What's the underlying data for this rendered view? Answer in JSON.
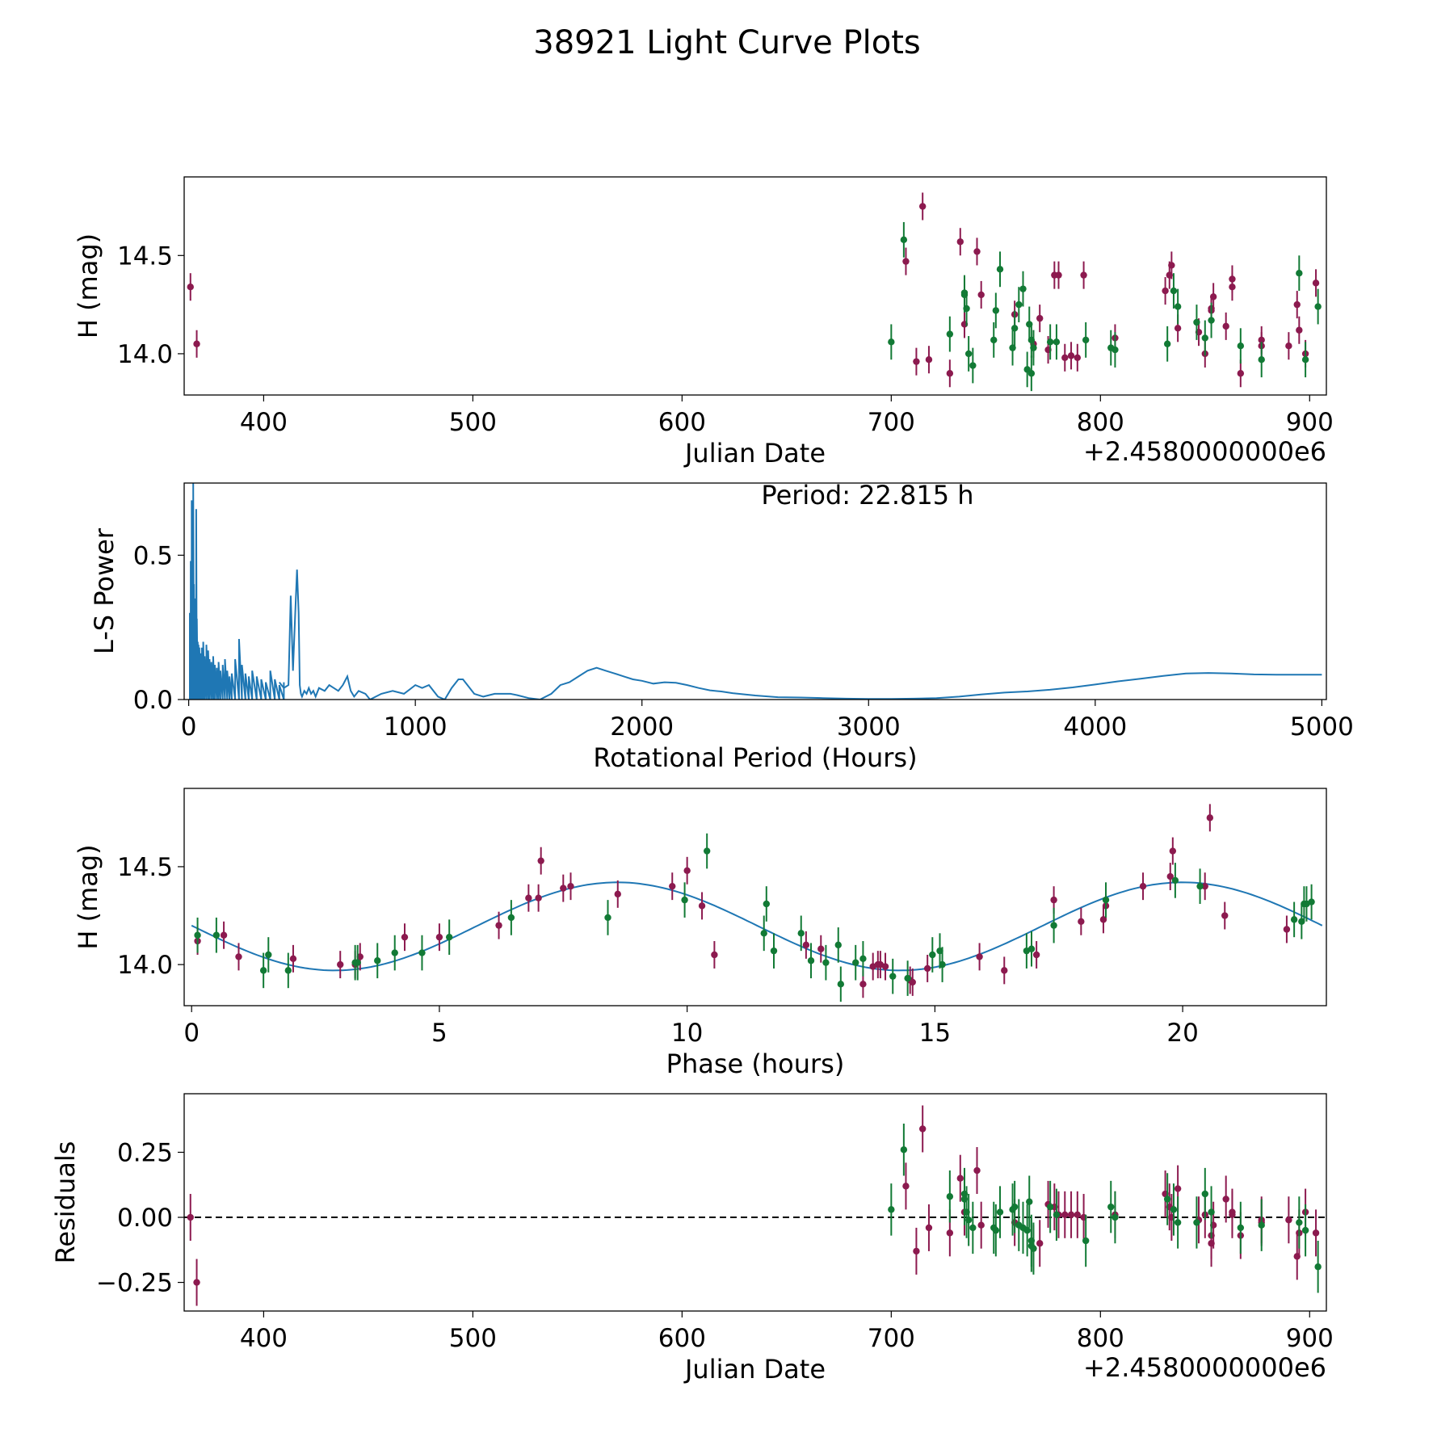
{
  "figure": {
    "title": "38921 Light Curve Plots"
  },
  "colors": {
    "red": "#8c1a4f",
    "green": "#127a35",
    "blue": "#1f77b4",
    "black": "#000000"
  },
  "chart_data": [
    {
      "name": "light-curve",
      "type": "scatter",
      "xlabel": "Julian Date",
      "ylabel": "H (mag)",
      "offset_text": "+2.4580000000e6",
      "xlim": [
        362.0,
        908.0
      ],
      "ylim": [
        13.79,
        14.9
      ],
      "xticks": [
        400,
        500,
        600,
        700,
        800,
        900
      ],
      "xtick_labels": [
        "400",
        "500",
        "600",
        "700",
        "800",
        "900"
      ],
      "yticks": [
        14.0,
        14.5
      ],
      "ytick_labels": [
        "14.0",
        "14.5"
      ],
      "series": [
        {
          "name": "red",
          "color": "red",
          "yerr": 0.07,
          "x": [
            365,
            368,
            707,
            712,
            715,
            718,
            728,
            733,
            735,
            741,
            743,
            759,
            768,
            771,
            775,
            778,
            780,
            783,
            786,
            789,
            792,
            807,
            831,
            833,
            834,
            837,
            847,
            850,
            853,
            853,
            854,
            860,
            863,
            863,
            867,
            877,
            877,
            890,
            894,
            895,
            898,
            903
          ],
          "y": [
            14.34,
            14.05,
            14.47,
            13.96,
            14.75,
            13.97,
            13.9,
            14.57,
            14.15,
            14.52,
            14.3,
            14.2,
            14.05,
            14.18,
            14.02,
            14.4,
            14.4,
            13.98,
            13.99,
            13.98,
            14.4,
            14.08,
            14.32,
            14.4,
            14.45,
            14.13,
            14.11,
            14.0,
            14.22,
            14.23,
            14.29,
            14.14,
            14.34,
            14.38,
            13.9,
            14.04,
            14.07,
            14.04,
            14.25,
            14.12,
            14.0,
            14.36
          ]
        },
        {
          "name": "green",
          "color": "green",
          "yerr": 0.09,
          "x": [
            700,
            706,
            728,
            735,
            735,
            736,
            737,
            739,
            749,
            750,
            752,
            758,
            759,
            761,
            763,
            765,
            766,
            767,
            767,
            768,
            776,
            779,
            793,
            805,
            807,
            832,
            835,
            837,
            846,
            850,
            853,
            867,
            877,
            895,
            898,
            904
          ],
          "y": [
            14.06,
            14.58,
            14.1,
            14.3,
            14.31,
            14.23,
            14.0,
            13.94,
            14.07,
            14.22,
            14.43,
            14.03,
            14.13,
            14.25,
            14.33,
            13.92,
            14.15,
            14.07,
            13.9,
            14.03,
            14.06,
            14.06,
            14.07,
            14.03,
            14.02,
            14.05,
            14.32,
            14.24,
            14.16,
            14.08,
            14.17,
            14.04,
            13.97,
            14.41,
            13.97,
            14.24
          ]
        }
      ]
    },
    {
      "name": "periodogram",
      "type": "line",
      "xlabel": "Rotational Period (Hours)",
      "ylabel": "L-S Power",
      "annotation": "Period: 22.815 h",
      "xlim": [
        -20,
        5020
      ],
      "ylim": [
        0.0,
        0.75
      ],
      "xticks": [
        0,
        1000,
        2000,
        3000,
        4000,
        5000
      ],
      "xtick_labels": [
        "0",
        "1000",
        "2000",
        "3000",
        "4000",
        "5000"
      ],
      "yticks": [
        0.0,
        0.5
      ],
      "ytick_labels": [
        "0.0",
        "0.5"
      ],
      "spikes": {
        "x": [
          5,
          9,
          13,
          17,
          20,
          23,
          26,
          29,
          33,
          36,
          40,
          43,
          47,
          52,
          58,
          64,
          70,
          78,
          86,
          92,
          100,
          108,
          115,
          124,
          132,
          140,
          150,
          160,
          170,
          180,
          190,
          205,
          222,
          235,
          250,
          265,
          280,
          300,
          320,
          340,
          360,
          380,
          400,
          420
        ],
        "y": [
          0.3,
          0.48,
          0.69,
          0.6,
          0.75,
          0.4,
          0.35,
          0.25,
          0.66,
          0.28,
          0.2,
          0.19,
          0.18,
          0.16,
          0.18,
          0.2,
          0.15,
          0.19,
          0.17,
          0.14,
          0.13,
          0.15,
          0.12,
          0.11,
          0.13,
          0.1,
          0.12,
          0.14,
          0.1,
          0.08,
          0.09,
          0.14,
          0.21,
          0.12,
          0.09,
          0.08,
          0.1,
          0.08,
          0.07,
          0.06,
          0.1,
          0.07,
          0.05,
          0.06
        ]
      },
      "curve": {
        "x": [
          400,
          420,
          440,
          450,
          460,
          470,
          478,
          485,
          490,
          495,
          500,
          510,
          520,
          530,
          540,
          550,
          560,
          575,
          600,
          620,
          640,
          660,
          680,
          700,
          715,
          730,
          750,
          780,
          800,
          850,
          900,
          950,
          1000,
          1030,
          1060,
          1100,
          1130,
          1160,
          1190,
          1210,
          1230,
          1260,
          1300,
          1350,
          1380,
          1420,
          1450,
          1500,
          1550,
          1600,
          1640,
          1680,
          1720,
          1760,
          1800,
          1840,
          1880,
          1920,
          1960,
          2000,
          2050,
          2100,
          2150,
          2200,
          2250,
          2300,
          2350,
          2400,
          2500,
          2600,
          2700,
          2800,
          2900,
          3000,
          3100,
          3200,
          3300,
          3400,
          3500,
          3600,
          3700,
          3800,
          3900,
          4000,
          4100,
          4200,
          4300,
          4400,
          4500,
          4600,
          4700,
          4800,
          4900,
          5000
        ],
        "y": [
          0.06,
          0.04,
          0.05,
          0.36,
          0.1,
          0.3,
          0.45,
          0.3,
          0.05,
          0.02,
          0.01,
          0.03,
          0.02,
          0.04,
          0.02,
          0.03,
          0.01,
          0.04,
          0.03,
          0.05,
          0.04,
          0.03,
          0.05,
          0.08,
          0.03,
          0.01,
          0.03,
          0.02,
          0.0,
          0.02,
          0.03,
          0.02,
          0.05,
          0.04,
          0.05,
          0.01,
          0.0,
          0.04,
          0.07,
          0.07,
          0.05,
          0.02,
          0.01,
          0.02,
          0.02,
          0.02,
          0.015,
          0.005,
          0.0,
          0.02,
          0.05,
          0.06,
          0.08,
          0.1,
          0.11,
          0.1,
          0.09,
          0.08,
          0.07,
          0.065,
          0.055,
          0.06,
          0.058,
          0.05,
          0.04,
          0.032,
          0.028,
          0.022,
          0.014,
          0.008,
          0.007,
          0.005,
          0.003,
          0.002,
          0.002,
          0.003,
          0.005,
          0.01,
          0.018,
          0.024,
          0.028,
          0.034,
          0.042,
          0.052,
          0.063,
          0.072,
          0.082,
          0.09,
          0.092,
          0.09,
          0.087,
          0.086,
          0.086,
          0.086
        ]
      }
    },
    {
      "name": "phased",
      "type": "scatter",
      "xlabel": "Phase (hours)",
      "ylabel": "H (mag)",
      "xlim": [
        -0.15,
        22.9
      ],
      "ylim": [
        13.79,
        14.9
      ],
      "xticks": [
        0,
        5,
        10,
        15,
        20
      ],
      "xtick_labels": [
        "0",
        "5",
        "10",
        "15",
        "20"
      ],
      "yticks": [
        14.0,
        14.5
      ],
      "ytick_labels": [
        "14.0",
        "14.5"
      ],
      "fit": {
        "mean": 14.195,
        "amplitude": 0.225,
        "period": 11.4075,
        "phase0": 5.74
      },
      "series": [
        {
          "name": "red",
          "color": "red",
          "yerr": 0.07,
          "x": [
            0.12,
            0.65,
            0.95,
            2.05,
            3.0,
            3.3,
            3.4,
            4.3,
            5.0,
            6.2,
            6.8,
            7.0,
            7.05,
            7.5,
            7.65,
            8.6,
            9.7,
            10.0,
            10.3,
            10.55,
            12.4,
            12.7,
            13.55,
            13.75,
            13.85,
            13.9,
            14.0,
            14.5,
            14.55,
            14.85,
            15.9,
            16.4,
            17.05,
            17.4,
            17.95,
            18.4,
            18.45,
            19.2,
            19.75,
            19.8,
            20.45,
            20.55,
            20.85,
            22.1
          ],
          "y": [
            14.12,
            14.15,
            14.04,
            14.03,
            14.0,
            14.0,
            14.04,
            14.14,
            14.14,
            14.2,
            14.34,
            14.34,
            14.53,
            14.39,
            14.4,
            14.36,
            14.4,
            14.48,
            14.3,
            14.05,
            14.1,
            14.08,
            13.9,
            13.99,
            14.0,
            14.0,
            13.99,
            13.92,
            13.91,
            13.98,
            14.04,
            13.97,
            14.05,
            14.33,
            14.22,
            14.23,
            14.3,
            14.4,
            14.45,
            14.58,
            14.4,
            14.75,
            14.25,
            14.18
          ]
        },
        {
          "name": "green",
          "color": "green",
          "yerr": 0.09,
          "x": [
            0.12,
            0.5,
            1.45,
            1.55,
            1.95,
            3.3,
            3.35,
            3.75,
            4.1,
            4.65,
            5.2,
            6.45,
            8.4,
            9.95,
            10.4,
            11.55,
            11.6,
            11.75,
            12.3,
            12.5,
            12.8,
            13.05,
            13.1,
            13.4,
            13.55,
            14.15,
            14.45,
            14.95,
            15.1,
            15.15,
            16.85,
            16.95,
            17.4,
            18.45,
            19.85,
            20.35,
            22.25,
            22.4,
            22.45,
            22.5,
            22.6
          ],
          "y": [
            14.15,
            14.15,
            13.97,
            14.05,
            13.97,
            14.01,
            14.01,
            14.02,
            14.06,
            14.06,
            14.14,
            14.24,
            14.24,
            14.33,
            14.58,
            14.16,
            14.31,
            14.07,
            14.16,
            14.02,
            14.01,
            14.1,
            13.9,
            14.01,
            14.03,
            13.94,
            13.93,
            14.05,
            14.07,
            14.0,
            14.07,
            14.08,
            14.2,
            14.33,
            14.43,
            14.4,
            14.23,
            14.22,
            14.31,
            14.31,
            14.32
          ]
        }
      ]
    },
    {
      "name": "residuals",
      "type": "scatter",
      "xlabel": "Julian Date",
      "ylabel": "Residuals",
      "offset_text": "+2.4580000000e6",
      "xlim": [
        362.0,
        908.0
      ],
      "ylim": [
        -0.36,
        0.475
      ],
      "xticks": [
        400,
        500,
        600,
        700,
        800,
        900
      ],
      "xtick_labels": [
        "400",
        "500",
        "600",
        "700",
        "800",
        "900"
      ],
      "yticks": [
        0.25,
        0.0,
        -0.25
      ],
      "ytick_labels": [
        "0.25",
        "0.00",
        "−0.25"
      ],
      "reference_line": 0.0,
      "series": [
        {
          "name": "red",
          "color": "red",
          "yerr": 0.09,
          "x": [
            365,
            368,
            707,
            712,
            715,
            718,
            728,
            733,
            735,
            741,
            743,
            759,
            768,
            771,
            775,
            778,
            780,
            783,
            786,
            789,
            792,
            807,
            831,
            833,
            834,
            837,
            847,
            850,
            853,
            853,
            854,
            860,
            863,
            863,
            867,
            877,
            877,
            890,
            894,
            895,
            898,
            903
          ],
          "y": [
            0.0,
            -0.25,
            0.12,
            -0.13,
            0.34,
            -0.04,
            -0.06,
            0.15,
            0.02,
            0.18,
            -0.03,
            -0.02,
            -0.12,
            -0.1,
            0.05,
            0.04,
            0.01,
            0.01,
            0.01,
            0.01,
            0.0,
            0.01,
            0.09,
            0.04,
            0.0,
            0.11,
            -0.01,
            0.01,
            -0.07,
            -0.1,
            -0.03,
            0.07,
            0.02,
            0.01,
            -0.07,
            -0.01,
            -0.02,
            -0.01,
            -0.15,
            -0.06,
            0.02,
            -0.06
          ]
        },
        {
          "name": "green",
          "color": "green",
          "yerr": 0.1,
          "x": [
            700,
            706,
            728,
            735,
            735,
            736,
            737,
            739,
            749,
            750,
            752,
            758,
            759,
            761,
            763,
            765,
            766,
            767,
            767,
            768,
            776,
            779,
            793,
            805,
            807,
            832,
            835,
            837,
            846,
            850,
            853,
            867,
            877,
            895,
            898,
            904
          ],
          "y": [
            0.03,
            0.26,
            0.08,
            0.09,
            0.07,
            0.02,
            -0.01,
            -0.04,
            -0.04,
            -0.05,
            0.02,
            0.03,
            0.04,
            -0.03,
            -0.04,
            -0.05,
            0.06,
            -0.09,
            -0.11,
            -0.12,
            0.04,
            0.01,
            -0.09,
            0.04,
            0.0,
            0.07,
            0.03,
            -0.02,
            -0.02,
            0.09,
            0.02,
            -0.04,
            -0.03,
            -0.02,
            -0.05,
            -0.19
          ]
        }
      ]
    }
  ]
}
